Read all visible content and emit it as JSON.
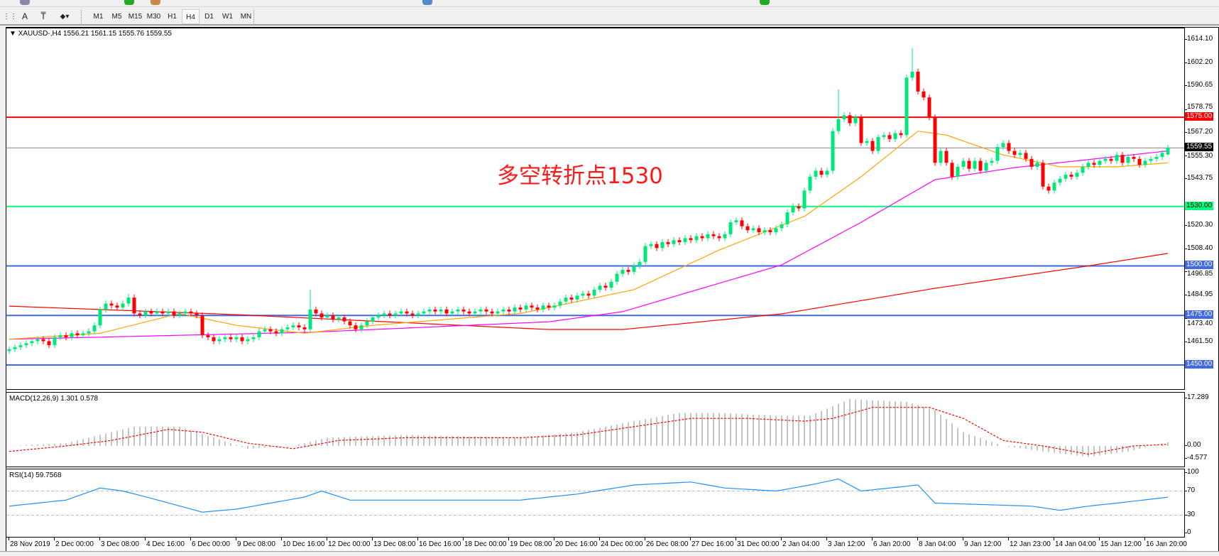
{
  "toolbar": {
    "timeframes": [
      "M1",
      "M5",
      "M15",
      "M30",
      "H1",
      "H4",
      "D1",
      "W1",
      "MN"
    ],
    "active_timeframe": "H4",
    "tool_icons": [
      "fibonacci-icon",
      "text-icon",
      "text-label-icon",
      "arrows-icon"
    ]
  },
  "chart": {
    "header": "XAUUSD-,H4  1556.21 1561.15 1555.76 1559.55",
    "annotation": "多空转折点1530",
    "price_axis": [
      "1614.10",
      "1602.20",
      "1590.65",
      "1578.75",
      "1567.20",
      "1555.30",
      "1543.75",
      "1520.30",
      "1508.40",
      "1496.85",
      "1484.95",
      "1473.40",
      "1461.50"
    ],
    "current_price": "1559.55",
    "hlines": [
      {
        "price": "1575.00",
        "color": "#ff0000"
      },
      {
        "price": "1530.00",
        "color": "#00ff7f"
      },
      {
        "price": "1500.00",
        "color": "#4169e1"
      },
      {
        "price": "1475.00",
        "color": "#4169e1"
      },
      {
        "price": "1450.00",
        "color": "#4169e1"
      }
    ],
    "colors": {
      "bull": "#00e87a",
      "bear": "#ff0000",
      "ma_fast": "#ffa500",
      "ma_mid": "#ff00ff",
      "ma_slow": "#ff0000",
      "current_line": "#808080"
    }
  },
  "macd": {
    "label": "MACD(12,26,9) 1.301 0.578",
    "axis": [
      "17.289",
      "0.00",
      "-4.577"
    ]
  },
  "rsi": {
    "label": "RSI(14) 59.7568",
    "axis": [
      "100",
      "70",
      "30",
      "0"
    ]
  },
  "time_axis": [
    "28 Nov 2019",
    "2 Dec 00:00",
    "3 Dec 08:00",
    "4 Dec 16:00",
    "6 Dec 00:00",
    "9 Dec 08:00",
    "10 Dec 16:00",
    "12 Dec 00:00",
    "13 Dec 08:00",
    "16 Dec 16:00",
    "18 Dec 00:00",
    "19 Dec 08:00",
    "20 Dec 16:00",
    "24 Dec 00:00",
    "26 Dec 08:00",
    "27 Dec 16:00",
    "31 Dec 00:00",
    "2 Jan 04:00",
    "3 Jan 12:00",
    "6 Jan 20:00",
    "8 Jan 04:00",
    "9 Jan 12:00",
    "12 Jan 23:00",
    "14 Jan 04:00",
    "15 Jan 12:00",
    "16 Jan 20:00"
  ],
  "chart_data": {
    "type": "candlestick",
    "symbol": "XAUUSD-",
    "timeframe": "H4",
    "ylim": [
      1450,
      1614.1
    ],
    "last_candle": {
      "open": 1556.21,
      "high": 1561.15,
      "low": 1555.76,
      "close": 1559.55
    },
    "closes": [
      1458,
      1459,
      1460,
      1461,
      1462,
      1463,
      1462,
      1460,
      1464,
      1465,
      1464,
      1466,
      1465,
      1466,
      1467,
      1470,
      1478,
      1481,
      1480,
      1479,
      1481,
      1484,
      1476,
      1475,
      1477,
      1476,
      1477,
      1476,
      1477,
      1475,
      1476,
      1477,
      1476,
      1475,
      1465,
      1464,
      1462,
      1463,
      1464,
      1463,
      1464,
      1462,
      1463,
      1464,
      1467,
      1468,
      1467,
      1466,
      1468,
      1469,
      1470,
      1469,
      1468,
      1478,
      1476,
      1474,
      1475,
      1473,
      1474,
      1472,
      1470,
      1468,
      1470,
      1472,
      1474,
      1475,
      1476,
      1475,
      1476,
      1477,
      1476,
      1475,
      1476,
      1477,
      1478,
      1477,
      1478,
      1476,
      1477,
      1478,
      1477,
      1476,
      1477,
      1478,
      1477,
      1476,
      1477,
      1478,
      1477,
      1479,
      1478,
      1480,
      1479,
      1478,
      1480,
      1479,
      1480,
      1482,
      1484,
      1483,
      1485,
      1486,
      1485,
      1488,
      1490,
      1489,
      1492,
      1496,
      1498,
      1497,
      1500,
      1502,
      1510,
      1511,
      1509,
      1512,
      1511,
      1513,
      1512,
      1514,
      1513,
      1515,
      1514,
      1516,
      1515,
      1514,
      1516,
      1522,
      1523,
      1520,
      1518,
      1519,
      1517,
      1518,
      1517,
      1519,
      1521,
      1527,
      1530,
      1529,
      1538,
      1545,
      1548,
      1546,
      1548,
      1568,
      1574,
      1576,
      1572,
      1575,
      1562,
      1563,
      1558,
      1565,
      1566,
      1564,
      1567,
      1566,
      1595,
      1598,
      1588,
      1585,
      1575,
      1552,
      1558,
      1552,
      1545,
      1550,
      1553,
      1549,
      1553,
      1548,
      1552,
      1553,
      1560,
      1562,
      1558,
      1556,
      1557,
      1554,
      1550,
      1552,
      1540,
      1538,
      1542,
      1544,
      1546,
      1545,
      1547,
      1550,
      1552,
      1551,
      1553,
      1554,
      1553,
      1556,
      1552,
      1555,
      1554,
      1551,
      1553,
      1554,
      1555,
      1557,
      1559.55
    ],
    "high_spikes": {
      "146": 1589,
      "159": 1610,
      "21": 1486,
      "53": 1488
    },
    "ma_fast": [
      [
        0,
        1463
      ],
      [
        16,
        1466
      ],
      [
        30,
        1476
      ],
      [
        40,
        1470
      ],
      [
        52,
        1466
      ],
      [
        64,
        1470
      ],
      [
        90,
        1476
      ],
      [
        110,
        1488
      ],
      [
        125,
        1508
      ],
      [
        140,
        1525
      ],
      [
        150,
        1545
      ],
      [
        160,
        1568
      ],
      [
        165,
        1566
      ],
      [
        175,
        1556
      ],
      [
        185,
        1550
      ],
      [
        195,
        1550
      ],
      [
        204,
        1552
      ]
    ],
    "ma_mid": [
      [
        0,
        1463
      ],
      [
        53,
        1466.5
      ],
      [
        95,
        1471.8
      ],
      [
        108,
        1476.9
      ],
      [
        136,
        1500.5
      ],
      [
        150,
        1522
      ],
      [
        163,
        1543.5
      ],
      [
        177,
        1549.6
      ],
      [
        204,
        1558
      ]
    ],
    "ma_slow": [
      [
        0,
        1479.7
      ],
      [
        40,
        1475.4
      ],
      [
        95,
        1467.9
      ],
      [
        108,
        1467.9
      ],
      [
        136,
        1475.8
      ],
      [
        163,
        1488.7
      ],
      [
        190,
        1500
      ],
      [
        204,
        1506.3
      ]
    ],
    "macd_hist": [
      [
        0,
        0
      ],
      [
        10,
        1
      ],
      [
        16,
        4
      ],
      [
        22,
        7
      ],
      [
        30,
        7
      ],
      [
        36,
        3
      ],
      [
        42,
        -1
      ],
      [
        50,
        0
      ],
      [
        56,
        3
      ],
      [
        70,
        4
      ],
      [
        90,
        3
      ],
      [
        100,
        5
      ],
      [
        110,
        9
      ],
      [
        118,
        12
      ],
      [
        125,
        12
      ],
      [
        135,
        11
      ],
      [
        141,
        11
      ],
      [
        148,
        17
      ],
      [
        158,
        16
      ],
      [
        163,
        13
      ],
      [
        168,
        5
      ],
      [
        175,
        0
      ],
      [
        182,
        -2
      ],
      [
        190,
        -4
      ],
      [
        197,
        -2
      ],
      [
        204,
        1.301
      ]
    ],
    "macd_signal": [
      [
        0,
        -2
      ],
      [
        10,
        0
      ],
      [
        18,
        2
      ],
      [
        28,
        6
      ],
      [
        34,
        5
      ],
      [
        42,
        1
      ],
      [
        50,
        -1
      ],
      [
        58,
        2
      ],
      [
        70,
        3
      ],
      [
        90,
        3
      ],
      [
        100,
        4
      ],
      [
        110,
        7
      ],
      [
        120,
        10
      ],
      [
        130,
        10
      ],
      [
        140,
        9
      ],
      [
        145,
        10
      ],
      [
        152,
        14
      ],
      [
        162,
        14
      ],
      [
        168,
        10
      ],
      [
        175,
        2
      ],
      [
        182,
        0
      ],
      [
        190,
        -3
      ],
      [
        198,
        0
      ],
      [
        204,
        0.578
      ]
    ],
    "macd_ylim": [
      -4.577,
      17.289
    ],
    "rsi": [
      [
        0,
        45
      ],
      [
        10,
        55
      ],
      [
        16,
        75
      ],
      [
        20,
        70
      ],
      [
        25,
        58
      ],
      [
        34,
        35
      ],
      [
        40,
        40
      ],
      [
        52,
        60
      ],
      [
        55,
        70
      ],
      [
        60,
        55
      ],
      [
        70,
        55
      ],
      [
        90,
        55
      ],
      [
        100,
        65
      ],
      [
        110,
        80
      ],
      [
        120,
        85
      ],
      [
        126,
        75
      ],
      [
        135,
        70
      ],
      [
        141,
        80
      ],
      [
        146,
        90
      ],
      [
        150,
        70
      ],
      [
        160,
        80
      ],
      [
        163,
        50
      ],
      [
        170,
        48
      ],
      [
        180,
        45
      ],
      [
        185,
        38
      ],
      [
        190,
        45
      ],
      [
        195,
        50
      ],
      [
        204,
        59.7568
      ]
    ],
    "rsi_levels": [
      30,
      70
    ],
    "rsi_ylim": [
      0,
      100
    ]
  }
}
